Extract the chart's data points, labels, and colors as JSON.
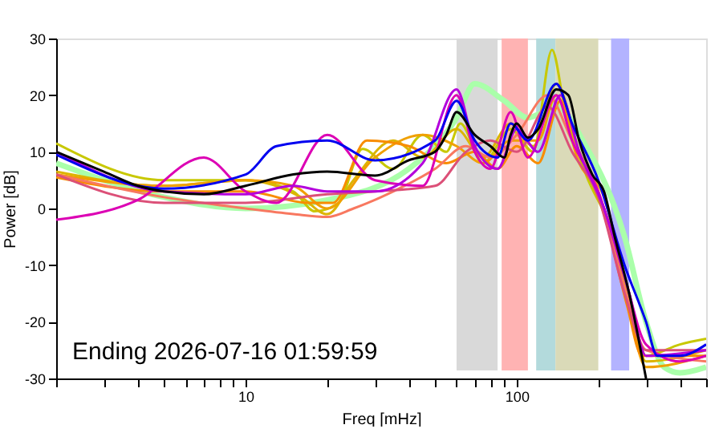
{
  "chart_data": {
    "type": "line",
    "xlabel": "Freq [mHz]",
    "ylabel": "Power [dB]",
    "log": "x",
    "grid": false,
    "legend": false,
    "xlim": [
      2,
      500
    ],
    "ylim": [
      -30,
      30
    ],
    "xticks": [
      {
        "value": 2,
        "label": null
      },
      {
        "value": 3,
        "label": null
      },
      {
        "value": 4,
        "label": null
      },
      {
        "value": 5,
        "label": null
      },
      {
        "value": 6,
        "label": null
      },
      {
        "value": 7,
        "label": null
      },
      {
        "value": 8,
        "label": null
      },
      {
        "value": 9,
        "label": null
      },
      10,
      {
        "value": 20,
        "label": null
      },
      {
        "value": 30,
        "label": null
      },
      {
        "value": 40,
        "label": null
      },
      {
        "value": 50,
        "label": null
      },
      {
        "value": 60,
        "label": null
      },
      {
        "value": 70,
        "label": null
      },
      {
        "value": 80,
        "label": null
      },
      {
        "value": 90,
        "label": null
      },
      100,
      {
        "value": 200,
        "label": null
      },
      {
        "value": 300,
        "label": null
      },
      {
        "value": 400,
        "label": null
      },
      {
        "value": 500,
        "label": null
      }
    ],
    "yticks": [
      -30,
      -20,
      -10,
      0,
      10,
      20,
      30
    ],
    "bands": [
      {
        "axis": "x",
        "from": 60,
        "to": 85,
        "color": "#d9d9d9"
      },
      {
        "axis": "x",
        "from": 88,
        "to": 110,
        "color": "#ffb3b3"
      },
      {
        "axis": "x",
        "from": 118,
        "to": 139,
        "color": "#b3dadc"
      },
      {
        "axis": "x",
        "from": 139,
        "to": 200,
        "color": "#dadab8"
      },
      {
        "axis": "x",
        "from": 223,
        "to": 260,
        "color": "#b3b3ff"
      }
    ],
    "annotations": [
      "Ending 2026-07-16 01:59:59"
    ],
    "series": [
      {
        "color": "#aaffaa",
        "x": [
          2,
          5,
          10,
          20,
          40,
          60,
          70,
          90,
          110,
          140,
          180,
          250,
          300,
          350,
          400,
          500
        ],
        "values": [
          8,
          2,
          0,
          1.5,
          7,
          16,
          22,
          19,
          16,
          18,
          11,
          -5,
          -20,
          -28,
          -29,
          -28
        ]
      },
      {
        "color": "#c8c800",
        "x": [
          2,
          5,
          10,
          15,
          18,
          22,
          27,
          35,
          45,
          55,
          62,
          75,
          95,
          115,
          135,
          150,
          180,
          220,
          260,
          300,
          400,
          500
        ],
        "values": [
          11.5,
          5,
          5,
          3,
          -0.5,
          1,
          10.5,
          7,
          13,
          10,
          15,
          8,
          14,
          10,
          28,
          18,
          6,
          -3,
          -15,
          -26,
          -24,
          -23
        ]
      },
      {
        "color": "#dcb400",
        "x": [
          2,
          5,
          10,
          16,
          20,
          25,
          35,
          45,
          60,
          75,
          95,
          115,
          140,
          170,
          210,
          260,
          300,
          500
        ],
        "values": [
          6.5,
          4,
          5,
          2,
          -1,
          5,
          12,
          9,
          14,
          9,
          15,
          11,
          22,
          10,
          0,
          -16,
          -27,
          -25
        ]
      },
      {
        "color": "#f0a000",
        "x": [
          2,
          5,
          10,
          15,
          20,
          30,
          45,
          60,
          75,
          95,
          120,
          140,
          170,
          210,
          260,
          300,
          500
        ],
        "values": [
          6,
          4,
          5,
          4,
          0,
          9,
          13,
          11,
          8,
          12,
          12,
          20,
          8,
          2,
          -18,
          -28,
          -26
        ]
      },
      {
        "color": "#f88c00",
        "x": [
          2,
          5,
          10,
          17,
          21,
          28,
          40,
          55,
          70,
          85,
          100,
          120,
          145,
          170,
          210,
          255,
          290,
          500
        ],
        "values": [
          5.5,
          3,
          3,
          1,
          1,
          12,
          11,
          8,
          10,
          7,
          11,
          8,
          19,
          10,
          -1,
          -17,
          -26,
          -26
        ]
      },
      {
        "color": "#f87860",
        "x": [
          2,
          5,
          10,
          15,
          20,
          25,
          35,
          50,
          65,
          80,
          100,
          130,
          160,
          200,
          250,
          300,
          500
        ],
        "values": [
          6,
          2,
          0,
          -1,
          -1.5,
          0,
          3,
          7,
          11,
          9,
          13,
          20,
          12,
          3,
          -14,
          -25,
          -27
        ]
      },
      {
        "color": "#dc5078",
        "x": [
          2,
          5,
          10,
          20,
          30,
          50,
          65,
          80,
          100,
          130,
          160,
          200,
          250,
          300,
          500
        ],
        "values": [
          6,
          1,
          1,
          2.5,
          3,
          4,
          10,
          12,
          10,
          18,
          10,
          2,
          -15,
          -25,
          -25
        ]
      },
      {
        "color": "#dc00b4",
        "x": [
          2,
          4,
          7,
          10,
          13,
          20,
          30,
          45,
          60,
          70,
          80,
          95,
          110,
          140,
          160,
          200,
          250,
          300,
          400,
          500
        ],
        "values": [
          -2,
          1.5,
          9,
          3,
          1,
          13,
          5,
          4,
          20,
          10,
          7,
          17,
          9,
          20,
          12,
          3,
          -12,
          -24,
          -27,
          -26
        ]
      },
      {
        "color": "#b400dc",
        "x": [
          2,
          5,
          10,
          15,
          20,
          30,
          45,
          60,
          70,
          85,
          100,
          120,
          145,
          170,
          210,
          260,
          300,
          500
        ],
        "values": [
          10,
          3,
          2.5,
          4,
          3,
          3,
          8,
          21,
          11,
          7,
          14,
          10,
          20,
          10,
          0,
          -15,
          -26,
          -25
        ]
      },
      {
        "color": "#0000f0",
        "x": [
          2,
          5,
          10,
          13,
          20,
          30,
          50,
          60,
          70,
          85,
          95,
          110,
          140,
          160,
          200,
          250,
          300,
          330,
          400,
          500
        ],
        "values": [
          9.5,
          3.5,
          6,
          11,
          12,
          8.5,
          12,
          19,
          12,
          9,
          15,
          12,
          22,
          15,
          5,
          -10,
          -20,
          -26,
          -26,
          -24
        ]
      },
      {
        "color": "#000000",
        "x": [
          2,
          3,
          4,
          5,
          7,
          10,
          15,
          20,
          30,
          40,
          50,
          55,
          60,
          70,
          80,
          90,
          95,
          100,
          110,
          120,
          140,
          155,
          170,
          190,
          210,
          230,
          260,
          300
        ],
        "values": [
          10,
          6.5,
          4,
          3,
          2.5,
          4,
          6,
          6.5,
          5.8,
          8.5,
          10,
          13,
          17,
          13,
          11,
          9,
          13,
          15,
          12.5,
          14,
          21,
          20,
          12,
          6,
          3,
          -5,
          -15,
          -30
        ]
      }
    ]
  }
}
